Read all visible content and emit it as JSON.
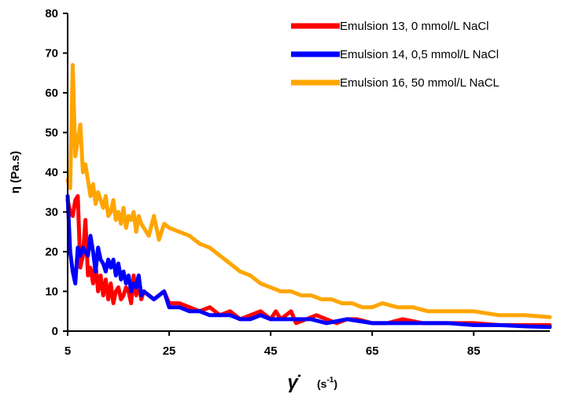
{
  "chart_data": {
    "type": "line",
    "title": "",
    "xlabel_symbol": "γ̇",
    "xlabel_unit_prefix": "(s",
    "xlabel_unit_exp": "-1",
    "xlabel_unit_suffix": ")",
    "ylabel": "η (Pa.s)",
    "xlim": [
      5,
      100
    ],
    "ylim": [
      0,
      80
    ],
    "xticks": [
      5,
      25,
      45,
      65,
      85
    ],
    "yticks": [
      0,
      10,
      20,
      30,
      40,
      50,
      60,
      70,
      80
    ],
    "grid": false,
    "legend_position": "top-right",
    "series": [
      {
        "name": "Emulsion 13, 0 mmol/L NaCl",
        "color": "#ff0000",
        "x": [
          5,
          5.5,
          6,
          6.5,
          7,
          7.5,
          8,
          8.5,
          9,
          9.5,
          10,
          10.5,
          11,
          11.5,
          12,
          12.5,
          13,
          13.5,
          14,
          14.5,
          15,
          15.5,
          16,
          16.5,
          17,
          17.5,
          18,
          18.5,
          19,
          19.5,
          20,
          21,
          22,
          23,
          24,
          25,
          27,
          29,
          31,
          33,
          35,
          37,
          39,
          41,
          43,
          45,
          46,
          47,
          48,
          49,
          50,
          52,
          54,
          56,
          58,
          60,
          62,
          65,
          68,
          71,
          75,
          80,
          85,
          90,
          95,
          100
        ],
        "values": [
          33,
          30,
          29,
          33,
          34,
          16,
          19,
          28,
          14,
          16,
          12,
          17,
          10,
          14,
          9,
          13,
          8,
          12,
          7,
          10,
          11,
          8,
          9,
          11,
          10,
          7,
          14,
          9,
          12,
          8,
          10,
          9,
          8,
          9,
          10,
          7,
          7,
          6,
          5,
          6,
          4,
          5,
          3,
          4,
          5,
          3,
          5,
          3,
          4,
          5,
          2,
          3,
          4,
          3,
          2,
          3,
          3,
          2,
          2,
          3,
          2,
          2,
          2,
          1.5,
          1.5,
          1.5
        ]
      },
      {
        "name": "Emulsion 14, 0,5 mmol/L NaCl",
        "color": "#0000ff",
        "x": [
          5,
          5.5,
          6,
          6.5,
          7,
          7.5,
          8,
          8.5,
          9,
          9.5,
          10,
          10.5,
          11,
          11.5,
          12,
          12.5,
          13,
          13.5,
          14,
          14.5,
          15,
          15.5,
          16,
          16.5,
          17,
          17.5,
          18,
          18.5,
          19,
          19.5,
          20,
          21,
          22,
          23,
          24,
          25,
          27,
          29,
          31,
          33,
          35,
          37,
          39,
          41,
          43,
          45,
          47,
          50,
          53,
          56,
          60,
          65,
          70,
          75,
          80,
          85,
          90,
          95,
          100
        ],
        "values": [
          34,
          20,
          15,
          12,
          21,
          19,
          21,
          20,
          19,
          24,
          20,
          15,
          21,
          18,
          17,
          15,
          18,
          16,
          18,
          14,
          17,
          13,
          15,
          12,
          14,
          10,
          12,
          11,
          14,
          9,
          10,
          9,
          8,
          9,
          10,
          6,
          6,
          5,
          5,
          4,
          4,
          4,
          3,
          3,
          4,
          3,
          3,
          3,
          3,
          2,
          3,
          2,
          2,
          2,
          2,
          1.5,
          1.5,
          1.2,
          1
        ]
      },
      {
        "name": "Emulsion 16, 50 mmol/L NaCL",
        "color": "#ffa500",
        "x": [
          5,
          5.5,
          6,
          6.5,
          7,
          7.5,
          8,
          8.5,
          9,
          9.5,
          10,
          10.5,
          11,
          11.5,
          12,
          12.5,
          13,
          13.5,
          14,
          14.5,
          15,
          15.5,
          16,
          16.5,
          17,
          17.5,
          18,
          18.5,
          19,
          19.5,
          20,
          21,
          22,
          23,
          24,
          25,
          27,
          29,
          31,
          33,
          35,
          37,
          39,
          41,
          43,
          45,
          47,
          49,
          51,
          53,
          55,
          57,
          59,
          61,
          63,
          65,
          67,
          70,
          73,
          76,
          80,
          85,
          90,
          95,
          100
        ],
        "values": [
          38,
          36,
          67,
          44,
          48,
          52,
          40,
          42,
          38,
          34,
          37,
          32,
          35,
          33,
          31,
          34,
          29,
          30,
          33,
          28,
          30,
          27,
          31,
          26,
          29,
          28,
          30,
          25,
          29,
          27,
          26,
          24,
          29,
          23,
          27,
          26,
          25,
          24,
          22,
          21,
          19,
          17,
          15,
          14,
          12,
          11,
          10,
          10,
          9,
          9,
          8,
          8,
          7,
          7,
          6,
          6,
          7,
          6,
          6,
          5,
          5,
          5,
          4,
          4,
          3.5
        ]
      }
    ]
  }
}
